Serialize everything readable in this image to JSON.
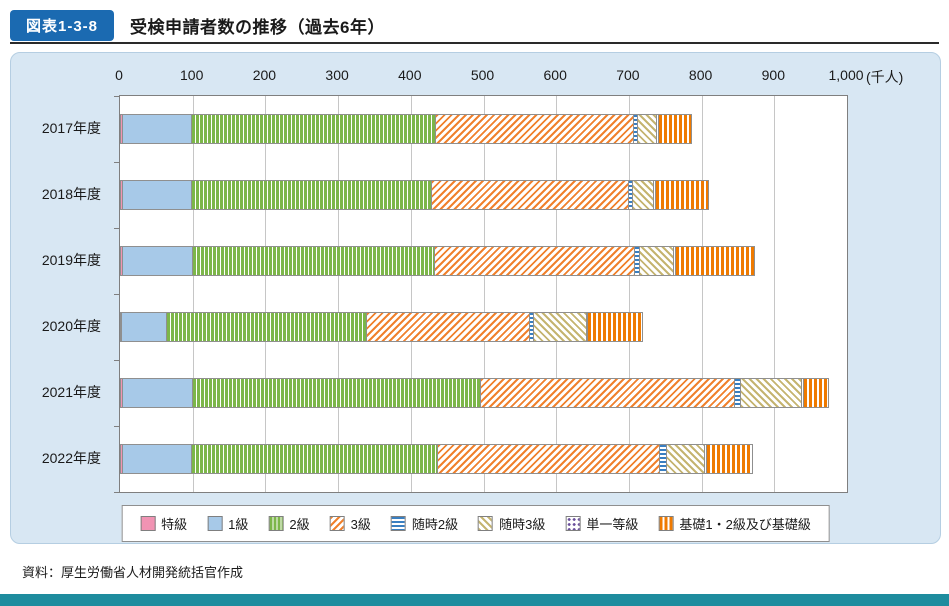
{
  "header": {
    "figure_label": "図表1-3-8",
    "title": "受検申請者数の推移（過去6年）",
    "label_bg_color": "#1b6ab1"
  },
  "colors": {
    "panel_bg": "#d8e7f3",
    "footer_band": "#1e8c9e",
    "plot_bg": "#ffffff"
  },
  "source": "資料：厚生労働省人材開発統括官作成",
  "chart_data": {
    "type": "bar",
    "orientation": "horizontal",
    "stacked": true,
    "grid": true,
    "legend_position": "bottom",
    "unit_label": "(千人)",
    "xlim": [
      0,
      1000
    ],
    "x_ticks": [
      "0",
      "100",
      "200",
      "300",
      "400",
      "500",
      "600",
      "700",
      "800",
      "900",
      "1,000"
    ],
    "categories": [
      "2017年度",
      "2018年度",
      "2019年度",
      "2020年度",
      "2021年度",
      "2022年度"
    ],
    "series": [
      {
        "id": "tokkyu",
        "name": "特級",
        "pattern": "solid",
        "color": "#f193b3",
        "values": [
          4,
          4,
          4,
          3,
          4,
          4
        ]
      },
      {
        "id": "grade1",
        "name": "1級",
        "pattern": "solid",
        "color": "#a7c9e8",
        "values": [
          95,
          95,
          97,
          62,
          97,
          95
        ]
      },
      {
        "id": "grade2",
        "name": "2級",
        "pattern": "vstripe-dense",
        "color": "#7cb649",
        "values": [
          336,
          330,
          332,
          275,
          396,
          339
        ]
      },
      {
        "id": "grade3",
        "name": "3級",
        "pattern": "diag-up",
        "color": "#f0812d",
        "values": [
          272,
          271,
          275,
          224,
          349,
          305
        ]
      },
      {
        "id": "zuiji2",
        "name": "随時2級",
        "pattern": "hstripe",
        "color": "#3a7fc1",
        "values": [
          6,
          6,
          7,
          5,
          8,
          10
        ]
      },
      {
        "id": "zuiji3",
        "name": "随時3級",
        "pattern": "diag-down",
        "color": "#c5b470",
        "values": [
          26,
          29,
          47,
          73,
          84,
          52
        ]
      },
      {
        "id": "tanitsu",
        "name": "単一等級",
        "pattern": "dots",
        "color": "#6a4f9b",
        "values": [
          2,
          2,
          3,
          2,
          3,
          2
        ]
      },
      {
        "id": "kiso",
        "name": "基礎1・2級及び基礎級",
        "pattern": "vstripe",
        "color": "#ef7a00",
        "values": [
          46,
          73,
          109,
          76,
          34,
          64
        ]
      }
    ],
    "totals_estimated": [
      787,
      810,
      874,
      720,
      975,
      871
    ]
  }
}
